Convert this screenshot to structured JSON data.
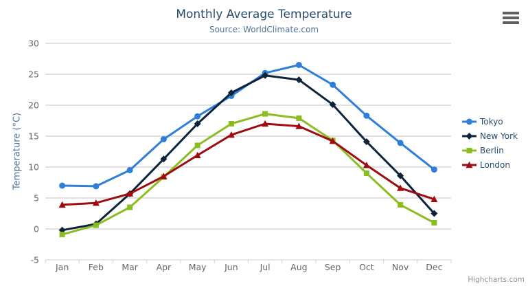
{
  "toolbar": {
    "menu_icon": "hamburger-icon"
  },
  "credits": {
    "label": "Highcharts.com"
  },
  "colors": {
    "title_text": "#274b6d",
    "subtitle_text": "#4d759e",
    "axis_label_text": "#666666",
    "gridline": "#c0c0c0",
    "axis_line": "#c0d0e0",
    "legend_text": "#274b6d",
    "credits_text": "#909090"
  },
  "chart_data": {
    "type": "line",
    "title": "Monthly Average Temperature",
    "subtitle": "Source: WorldClimate.com",
    "xlabel": "",
    "ylabel": "Temperature (°C)",
    "categories": [
      "Jan",
      "Feb",
      "Mar",
      "Apr",
      "May",
      "Jun",
      "Jul",
      "Aug",
      "Sep",
      "Oct",
      "Nov",
      "Dec"
    ],
    "ylim": [
      -5,
      30
    ],
    "ytick_interval": 5,
    "yticks": [
      -5,
      0,
      5,
      10,
      15,
      20,
      25,
      30
    ],
    "grid": "horizontal",
    "legend_position": "right",
    "series": [
      {
        "name": "Tokyo",
        "color": "#2f7ed8",
        "marker": "circle",
        "values": [
          7.0,
          6.9,
          9.5,
          14.5,
          18.2,
          21.5,
          25.2,
          26.5,
          23.3,
          18.3,
          13.9,
          9.6
        ]
      },
      {
        "name": "New York",
        "color": "#0d233a",
        "marker": "diamond",
        "values": [
          -0.2,
          0.8,
          5.7,
          11.3,
          17.0,
          22.0,
          24.8,
          24.1,
          20.1,
          14.1,
          8.6,
          2.5
        ]
      },
      {
        "name": "Berlin",
        "color": "#8bbc21",
        "marker": "square",
        "values": [
          -0.9,
          0.6,
          3.5,
          8.4,
          13.5,
          17.0,
          18.6,
          17.9,
          14.3,
          9.0,
          3.9,
          1.0
        ]
      },
      {
        "name": "London",
        "color": "#9e0b10",
        "marker": "triangle",
        "values": [
          3.9,
          4.2,
          5.7,
          8.5,
          11.9,
          15.2,
          17.0,
          16.6,
          14.2,
          10.3,
          6.6,
          4.8
        ]
      }
    ]
  }
}
